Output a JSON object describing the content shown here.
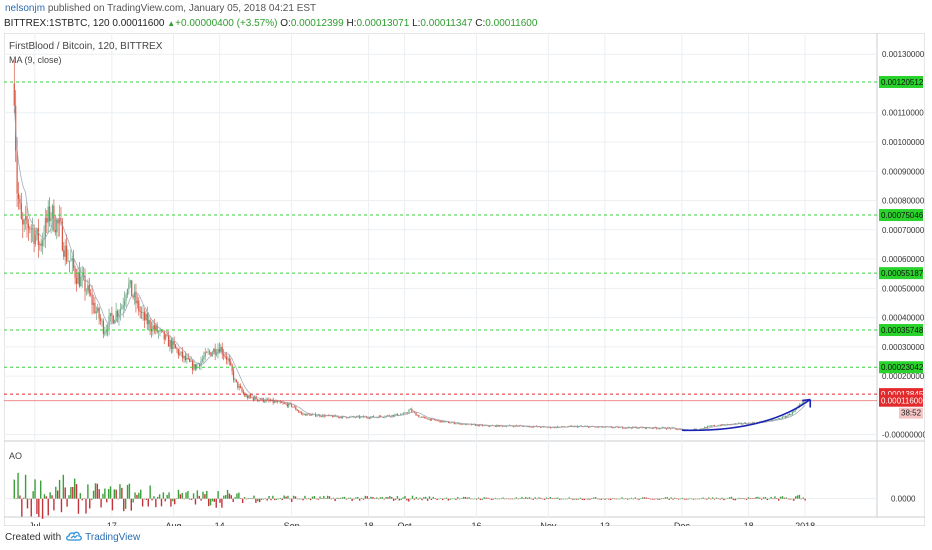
{
  "header": {
    "author": "nelsonjm",
    "published_text": "published on TradingView.com, January 05, 2018 04:21 EST",
    "symbol": "BITTREX:1STBTC, 120",
    "last_price": "0.00011600",
    "arrow": "▲",
    "change_text": "+0.00000400 (+3.57%)",
    "o_label": "O:",
    "o_value": "0.00012399",
    "h_label": "H:",
    "h_value": "0.00013071",
    "l_label": "L:",
    "l_value": "0.00011347",
    "c_label": "C:",
    "c_value": "0.00011600"
  },
  "legend": {
    "title": "FirstBlood / Bitcoin, 120, BITTREX",
    "indicator": "MA (9, close)",
    "oscillator": "AO"
  },
  "footer": {
    "created_with": "Created with",
    "brand": "TradingView"
  },
  "colors": {
    "grid": "#eceff2",
    "candle_up": "#6ba583",
    "candle_down": "#d75442",
    "ma": "#9aa4b4",
    "support_line": "#3ad13a",
    "support_label_bg": "#29d32b",
    "resist_line": "#e2292b",
    "price_label_bg": "#e2292b",
    "trend_arrow": "#1a22b5",
    "axis_text": "#333333",
    "ao_up": "#3a9f3a",
    "ao_down": "#c3333a"
  },
  "chart_data": {
    "type": "candlestick",
    "title": "FirstBlood / Bitcoin, 120, BITTREX",
    "x_tick_labels": [
      "Jul",
      "17",
      "Aug",
      "14",
      "Sep",
      "18",
      "Oct",
      "16",
      "Nov",
      "13",
      "Dec",
      "18",
      "2018"
    ],
    "x_tick_index": [
      0.4,
      1.9,
      3.1,
      4.0,
      5.4,
      6.9,
      7.6,
      9.0,
      10.4,
      11.5,
      13.0,
      14.3,
      15.4
    ],
    "y_tick_labels": [
      "0.00130000",
      "0.00110000",
      "0.00100000",
      "0.00090000",
      "0.00080000",
      "0.00070000",
      "0.00060000",
      "0.00050000",
      "0.00040000",
      "0.00030000",
      "0.00020000",
      "-0.00000000"
    ],
    "y_tick_values": [
      0.0013,
      0.0011,
      0.001,
      0.0009,
      0.0008,
      0.0007,
      0.0006,
      0.0005,
      0.0004,
      0.0003,
      0.0002,
      0.0
    ],
    "ylim": [
      -1.15e-05,
      0.0013725
    ],
    "xlim": [
      -0.2,
      16.8
    ],
    "horizontal_levels": [
      {
        "value": 0.00120512,
        "label": "0.00120512",
        "kind": "support"
      },
      {
        "value": 0.00075046,
        "label": "0.00075046",
        "kind": "support"
      },
      {
        "value": 0.00055187,
        "label": "0.00055187",
        "kind": "support"
      },
      {
        "value": 0.00035748,
        "label": "0.00035748",
        "kind": "support"
      },
      {
        "value": 0.00023042,
        "label": "0.00023042",
        "kind": "support"
      },
      {
        "value": 0.00013845,
        "label": "0.00013845",
        "kind": "resistance"
      }
    ],
    "last_price": {
      "value": 0.000116,
      "label": "0.00011600",
      "countdown": "38:52"
    },
    "price_path": [
      [
        0.0,
        0.0012
      ],
      [
        0.05,
        0.00085
      ],
      [
        0.15,
        0.0007
      ],
      [
        0.3,
        0.00072
      ],
      [
        0.5,
        0.00065
      ],
      [
        0.7,
        0.00076
      ],
      [
        0.9,
        0.0007
      ],
      [
        1.0,
        0.00062
      ],
      [
        1.2,
        0.00055
      ],
      [
        1.4,
        0.0005
      ],
      [
        1.6,
        0.00042
      ],
      [
        1.75,
        0.00036
      ],
      [
        1.9,
        0.0004
      ],
      [
        2.1,
        0.00044
      ],
      [
        2.2,
        0.00052
      ],
      [
        2.35,
        0.00046
      ],
      [
        2.5,
        0.0004
      ],
      [
        2.8,
        0.00035
      ],
      [
        3.1,
        0.0003
      ],
      [
        3.3,
        0.00026
      ],
      [
        3.5,
        0.00023
      ],
      [
        3.8,
        0.00028
      ],
      [
        4.0,
        0.0003
      ],
      [
        4.15,
        0.00026
      ],
      [
        4.3,
        0.00018
      ],
      [
        4.5,
        0.00013
      ],
      [
        4.8,
        0.00012
      ],
      [
        5.1,
        0.00011
      ],
      [
        5.4,
        0.0001
      ],
      [
        5.6,
        7e-05
      ],
      [
        6.0,
        6.5e-05
      ],
      [
        6.4,
        6e-05
      ],
      [
        7.0,
        6e-05
      ],
      [
        7.3,
        6.5e-05
      ],
      [
        7.6,
        7e-05
      ],
      [
        7.7,
        8.5e-05
      ],
      [
        7.9,
        6e-05
      ],
      [
        8.3,
        4.5e-05
      ],
      [
        8.8,
        3.5e-05
      ],
      [
        9.2,
        3e-05
      ],
      [
        9.8,
        3e-05
      ],
      [
        10.4,
        2.5e-05
      ],
      [
        11.0,
        2.8e-05
      ],
      [
        11.6,
        2.5e-05
      ],
      [
        12.2,
        2.4e-05
      ],
      [
        12.8,
        2.2e-05
      ],
      [
        13.0,
        1.5e-05
      ],
      [
        13.3,
        1.8e-05
      ],
      [
        13.6,
        3e-05
      ],
      [
        14.0,
        3.6e-05
      ],
      [
        14.4,
        4e-05
      ],
      [
        14.8,
        5e-05
      ],
      [
        15.0,
        6e-05
      ],
      [
        15.2,
        8e-05
      ],
      [
        15.4,
        0.000116
      ]
    ],
    "annotation": {
      "type": "trend_arrow",
      "from": [
        13.0,
        1.5e-05
      ],
      "to": [
        15.5,
        0.00012
      ]
    },
    "ao": {
      "ylim": [
        -4e-05,
        0.00015
      ],
      "y_tick_labels": [
        "0.0000"
      ],
      "y_tick_values": [
        0
      ]
    }
  }
}
